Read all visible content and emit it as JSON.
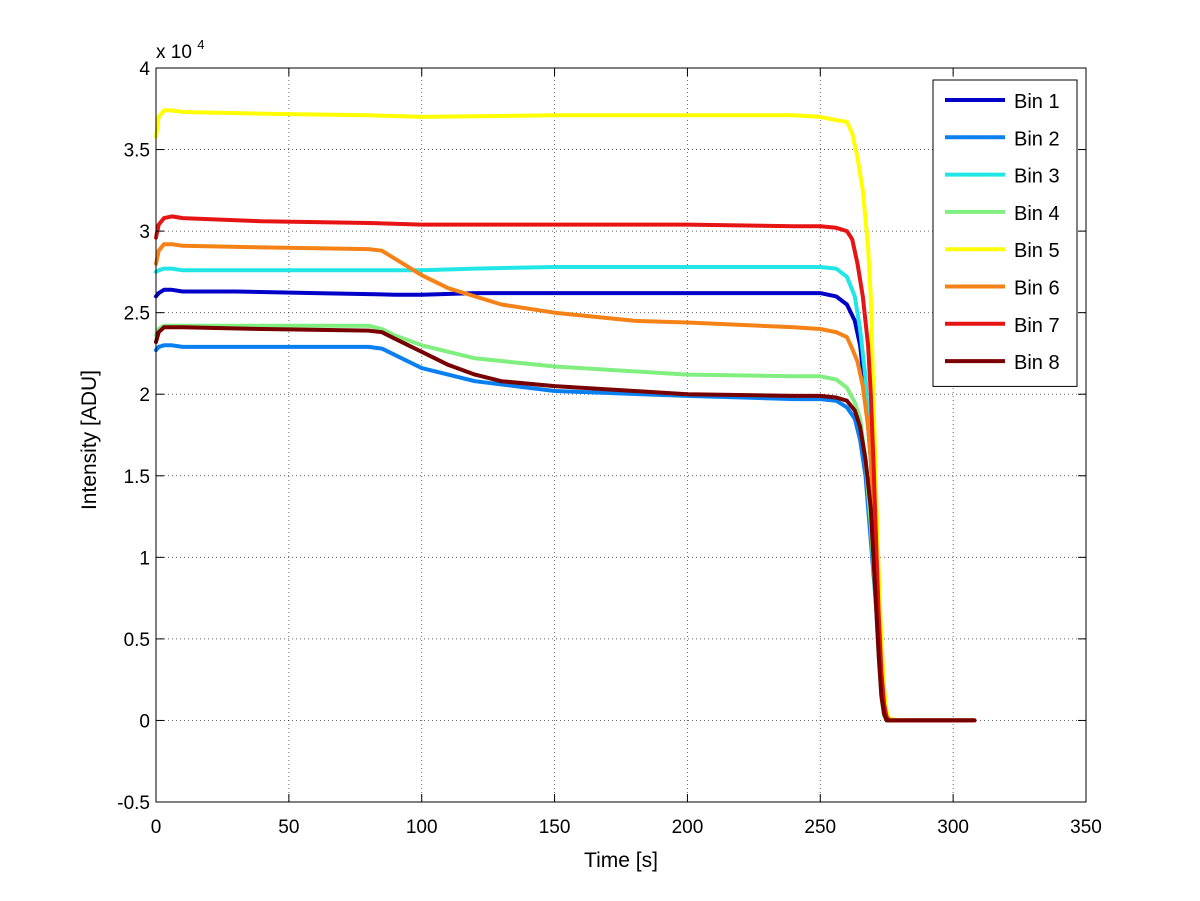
{
  "chart_data": {
    "type": "line",
    "title": "",
    "xlabel": "Time [s]",
    "ylabel": "Intensity [ADU]",
    "exponent_label": "x 10",
    "exponent_power": "4",
    "xlim": [
      0,
      350
    ],
    "ylim": [
      -0.5,
      4
    ],
    "x_ticks": [
      0,
      50,
      100,
      150,
      200,
      250,
      300,
      350
    ],
    "x_tick_labels": [
      "0",
      "50",
      "100",
      "150",
      "200",
      "250",
      "300",
      "350"
    ],
    "y_ticks": [
      -0.5,
      0,
      0.5,
      1,
      1.5,
      2,
      2.5,
      3,
      3.5,
      4
    ],
    "y_tick_labels": [
      "-0.5",
      "0",
      "0.5",
      "1",
      "1.5",
      "2",
      "2.5",
      "3",
      "3.5",
      "4"
    ],
    "grid": true,
    "legend_position": "top-right",
    "series": [
      {
        "name": "Bin 1",
        "color": "#0000c8",
        "x": [
          0,
          1,
          3,
          6,
          10,
          30,
          60,
          90,
          100,
          120,
          150,
          200,
          240,
          250,
          256,
          260,
          263,
          265,
          267,
          269,
          271,
          272,
          273,
          274,
          275,
          276,
          280,
          300,
          308
        ],
        "y": [
          2.6,
          2.62,
          2.64,
          2.64,
          2.63,
          2.63,
          2.62,
          2.61,
          2.61,
          2.62,
          2.62,
          2.62,
          2.62,
          2.62,
          2.6,
          2.55,
          2.45,
          2.3,
          2.0,
          1.6,
          0.9,
          0.5,
          0.2,
          0.05,
          0.01,
          0.0,
          0.0,
          0.0,
          0.0
        ]
      },
      {
        "name": "Bin 2",
        "color": "#0a7ff0",
        "x": [
          0,
          1,
          3,
          6,
          10,
          40,
          80,
          85,
          90,
          100,
          120,
          150,
          200,
          240,
          250,
          256,
          260,
          263,
          265,
          267,
          269,
          271,
          272,
          273,
          274,
          275,
          276,
          280,
          300,
          308
        ],
        "y": [
          2.27,
          2.29,
          2.3,
          2.3,
          2.29,
          2.29,
          2.29,
          2.28,
          2.24,
          2.16,
          2.08,
          2.02,
          1.99,
          1.97,
          1.97,
          1.96,
          1.92,
          1.85,
          1.72,
          1.5,
          1.1,
          0.7,
          0.4,
          0.15,
          0.03,
          0.0,
          0.0,
          0.0,
          0.0,
          0.0
        ]
      },
      {
        "name": "Bin 3",
        "color": "#22e6e6",
        "x": [
          0,
          1,
          3,
          6,
          10,
          40,
          80,
          100,
          120,
          150,
          180,
          200,
          240,
          250,
          256,
          260,
          263,
          265,
          267,
          269,
          271,
          272,
          273,
          274,
          275,
          276,
          280,
          300,
          308
        ],
        "y": [
          2.75,
          2.76,
          2.77,
          2.77,
          2.76,
          2.76,
          2.76,
          2.76,
          2.77,
          2.78,
          2.78,
          2.78,
          2.78,
          2.78,
          2.77,
          2.72,
          2.6,
          2.4,
          2.1,
          1.6,
          0.9,
          0.5,
          0.2,
          0.05,
          0.01,
          0.0,
          0.0,
          0.0,
          0.0
        ]
      },
      {
        "name": "Bin 4",
        "color": "#80ef80",
        "x": [
          0,
          1,
          3,
          6,
          10,
          40,
          80,
          85,
          90,
          100,
          110,
          120,
          150,
          200,
          240,
          250,
          256,
          260,
          263,
          265,
          267,
          269,
          271,
          272,
          273,
          274,
          275,
          276,
          280,
          300,
          308
        ],
        "y": [
          2.36,
          2.4,
          2.42,
          2.42,
          2.42,
          2.42,
          2.42,
          2.4,
          2.36,
          2.3,
          2.26,
          2.22,
          2.17,
          2.12,
          2.11,
          2.11,
          2.09,
          2.04,
          1.95,
          1.85,
          1.6,
          1.2,
          0.7,
          0.4,
          0.15,
          0.03,
          0.0,
          0.0,
          0.0,
          0.0,
          0.0
        ]
      },
      {
        "name": "Bin 5",
        "color": "#ffff00",
        "x": [
          0,
          1,
          3,
          6,
          10,
          40,
          80,
          100,
          150,
          200,
          240,
          250,
          256,
          260,
          262,
          264,
          266,
          268,
          269,
          270,
          271,
          272,
          273,
          274,
          275,
          276,
          280,
          300,
          308
        ],
        "y": [
          3.58,
          3.7,
          3.74,
          3.74,
          3.73,
          3.72,
          3.71,
          3.7,
          3.71,
          3.71,
          3.71,
          3.7,
          3.68,
          3.67,
          3.6,
          3.45,
          3.25,
          2.9,
          2.6,
          2.0,
          1.4,
          0.9,
          0.5,
          0.2,
          0.05,
          0.01,
          0.0,
          0.0,
          0.0
        ]
      },
      {
        "name": "Bin 6",
        "color": "#f58216",
        "x": [
          0,
          1,
          3,
          6,
          10,
          40,
          80,
          85,
          90,
          100,
          110,
          120,
          130,
          150,
          180,
          200,
          240,
          250,
          256,
          260,
          262,
          264,
          266,
          268,
          269,
          270,
          271,
          272,
          273,
          274,
          275,
          276,
          280,
          300,
          308
        ],
        "y": [
          2.8,
          2.88,
          2.92,
          2.92,
          2.91,
          2.9,
          2.89,
          2.88,
          2.83,
          2.73,
          2.65,
          2.6,
          2.55,
          2.5,
          2.45,
          2.44,
          2.41,
          2.4,
          2.38,
          2.35,
          2.28,
          2.2,
          2.05,
          1.8,
          1.6,
          1.3,
          0.9,
          0.55,
          0.25,
          0.08,
          0.02,
          0.0,
          0.0,
          0.0,
          0.0
        ]
      },
      {
        "name": "Bin 7",
        "color": "#e61414",
        "x": [
          0,
          1,
          3,
          6,
          10,
          40,
          80,
          100,
          150,
          200,
          240,
          250,
          256,
          260,
          262,
          264,
          266,
          268,
          269,
          270,
          271,
          272,
          273,
          274,
          275,
          276,
          280,
          300,
          308
        ],
        "y": [
          2.96,
          3.04,
          3.08,
          3.09,
          3.08,
          3.06,
          3.05,
          3.04,
          3.04,
          3.04,
          3.03,
          3.03,
          3.02,
          3.0,
          2.95,
          2.8,
          2.6,
          2.3,
          2.0,
          1.6,
          1.1,
          0.65,
          0.3,
          0.1,
          0.02,
          0.0,
          0.0,
          0.0,
          0.0
        ]
      },
      {
        "name": "Bin 8",
        "color": "#780000",
        "x": [
          0,
          1,
          3,
          6,
          10,
          40,
          80,
          85,
          90,
          100,
          110,
          120,
          130,
          150,
          180,
          200,
          240,
          250,
          256,
          260,
          263,
          265,
          267,
          269,
          270,
          271,
          272,
          273,
          274,
          275,
          276,
          280,
          300,
          308
        ],
        "y": [
          2.32,
          2.38,
          2.41,
          2.41,
          2.41,
          2.4,
          2.39,
          2.38,
          2.34,
          2.26,
          2.18,
          2.12,
          2.08,
          2.05,
          2.02,
          2.0,
          1.99,
          1.99,
          1.98,
          1.96,
          1.9,
          1.8,
          1.6,
          1.3,
          1.0,
          0.7,
          0.4,
          0.15,
          0.04,
          0.0,
          0.0,
          0.0,
          0.0,
          0.0
        ]
      }
    ]
  }
}
